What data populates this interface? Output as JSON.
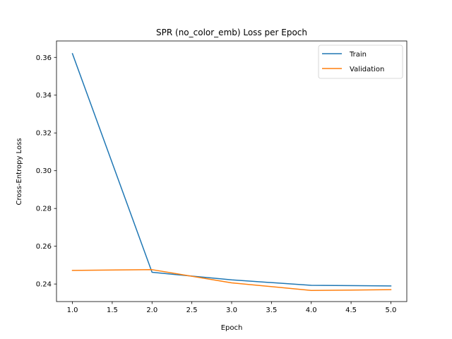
{
  "chart_data": {
    "type": "line",
    "title": "SPR (no_color_emb) Loss per Epoch",
    "xlabel": "Epoch",
    "ylabel": "Cross-Entropy Loss",
    "xlim": [
      0.8,
      5.2
    ],
    "ylim": [
      0.2307,
      0.3687
    ],
    "xticks": [
      1.0,
      1.5,
      2.0,
      2.5,
      3.0,
      3.5,
      4.0,
      4.5,
      5.0
    ],
    "xtick_labels": [
      "1.0",
      "1.5",
      "2.0",
      "2.5",
      "3.0",
      "3.5",
      "4.0",
      "4.5",
      "5.0"
    ],
    "yticks": [
      0.24,
      0.26,
      0.28,
      0.3,
      0.32,
      0.34,
      0.36
    ],
    "ytick_labels": [
      "0.24",
      "0.26",
      "0.28",
      "0.30",
      "0.32",
      "0.34",
      "0.36"
    ],
    "grid": false,
    "legend_position": "top-right",
    "x": [
      1,
      2,
      3,
      4,
      5
    ],
    "series": [
      {
        "name": "Train",
        "color": "#1f77b4",
        "values": [
          0.362,
          0.2462,
          0.2422,
          0.2393,
          0.239
        ]
      },
      {
        "name": "Validation",
        "color": "#ff7f0e",
        "values": [
          0.2472,
          0.2476,
          0.2406,
          0.2366,
          0.237
        ]
      }
    ]
  }
}
